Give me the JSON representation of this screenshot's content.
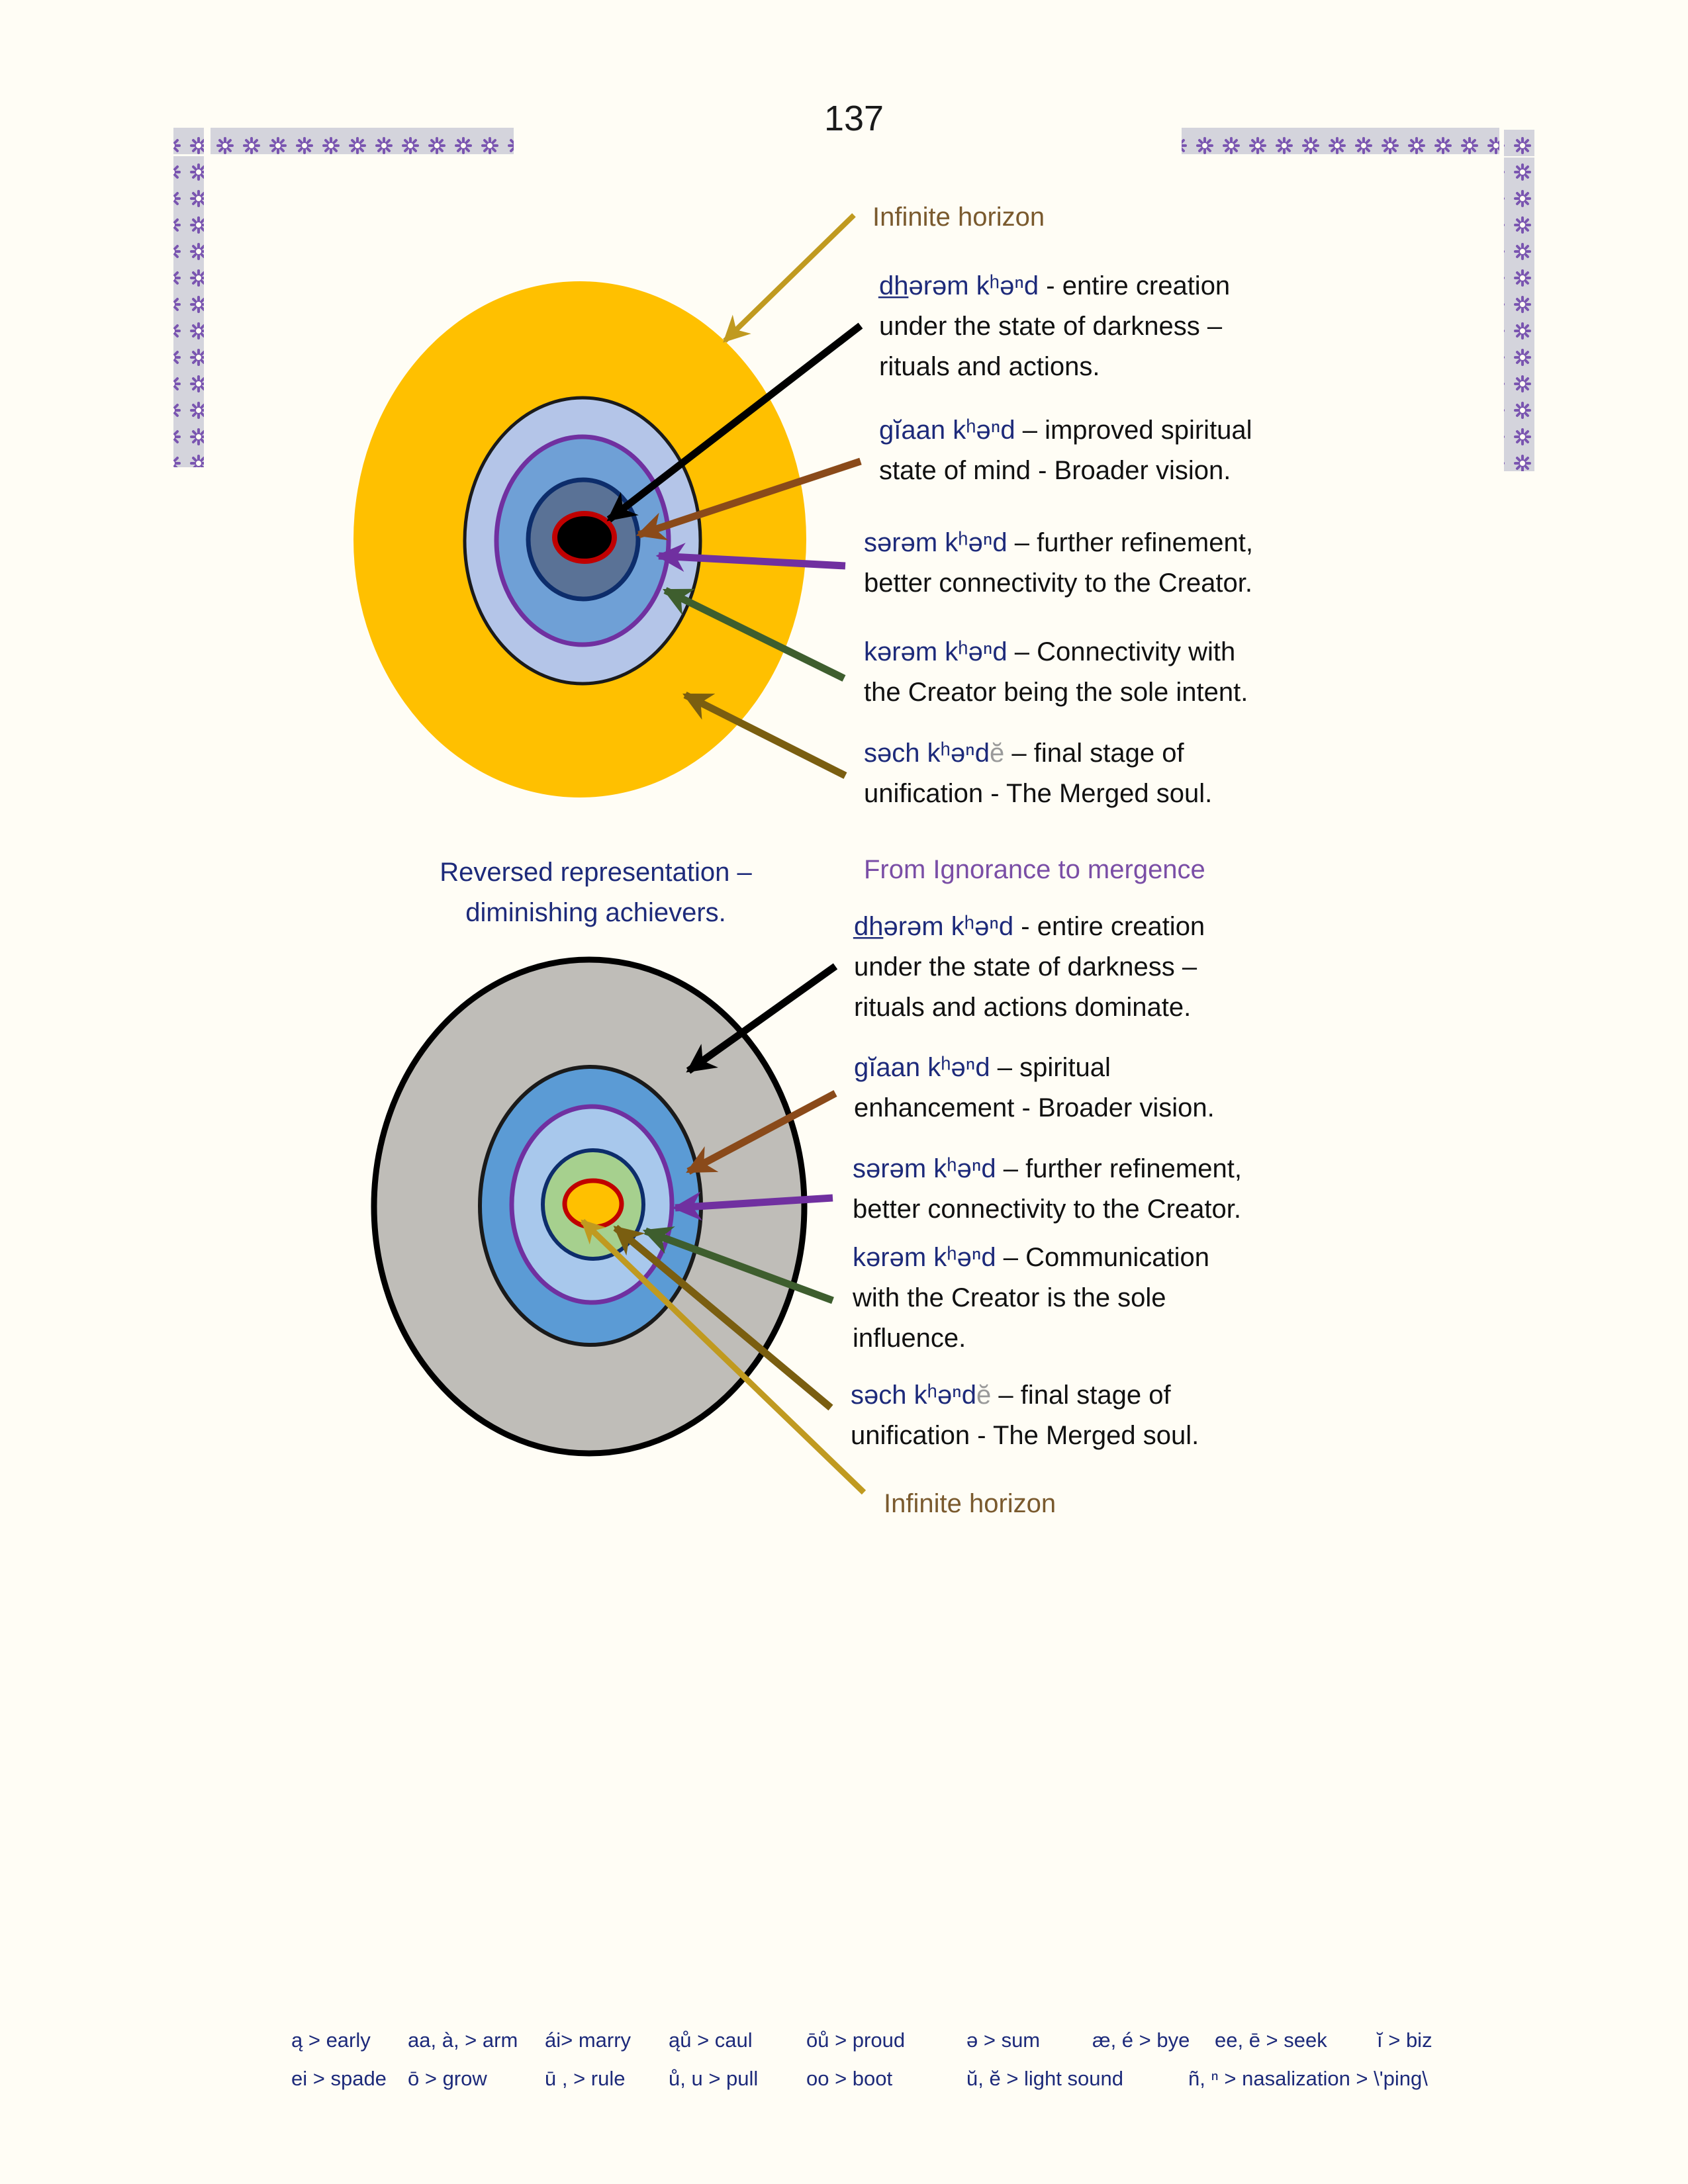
{
  "page_number": "137",
  "colors": {
    "gold": "#ffc000",
    "gray": "#bfbdb8",
    "light_blue": "#b4c5e8",
    "mid_blue": "#6fa0d6",
    "steel_blue": "#5a7296",
    "navy": "#0d2d6b",
    "purple": "#7030a0",
    "green": "#a6d08e",
    "red": "#c00000",
    "brown_arrow": "#8a4a1a",
    "green_arrow": "#3e5e2e",
    "olive_arrow": "#7a5e10",
    "gold_arrow": "#c09a20",
    "term_text": "#1d2a7a"
  },
  "top_diagram": {
    "horizon": "Infinite horizon",
    "items": [
      {
        "term": "d̲h̲ərəm  kʰəⁿd",
        "desc_1": "  - entire creation",
        "desc_2": "under the state of darkness –",
        "desc_3": "rituals and actions."
      },
      {
        "term": "gĭaan  kʰəⁿd",
        "desc_1": "  – improved spiritual",
        "desc_2": "state of mind - Broader vision."
      },
      {
        "term": "sərəm  kʰəⁿd",
        "desc_1": "  – further refinement,",
        "desc_2": "better connectivity to the Creator."
      },
      {
        "term": "kərəm   kʰəⁿd",
        "desc_1": "   – Connectivity with",
        "desc_2": "the Creator being the sole intent."
      },
      {
        "term": "səch  kʰəⁿd",
        "term_suffix": "ĕ",
        "desc_1": " – final stage of",
        "desc_2": "unification  - The Merged soul."
      }
    ]
  },
  "bottom_diagram": {
    "caption_left_1": "Reversed representation –",
    "caption_left_2": "diminishing achievers.",
    "caption_right": "From Ignorance to mergence",
    "horizon": "Infinite horizon",
    "items": [
      {
        "term": "d̲h̲ərəm  kʰəⁿd",
        "desc_1": " - entire creation",
        "desc_2": "under the state of darkness –",
        "desc_3": "rituals and actions dominate."
      },
      {
        "term": "gĭaan  kʰəⁿd",
        "desc_1": "  –  spiritual",
        "desc_2": "enhancement  - Broader vision."
      },
      {
        "term": "sərəm  kʰəⁿd",
        "desc_1": "  – further refinement,",
        "desc_2": "better connectivity to the Creator."
      },
      {
        "term": "kərəm   kʰəⁿd",
        "desc_1": "  – Communication",
        "desc_2": "with the Creator is the sole",
        "desc_3": "influence."
      },
      {
        "term": "səch  kʰəⁿd",
        "term_suffix": "ĕ",
        "desc_1": " – final stage of",
        "desc_2": "unification - The Merged soul."
      }
    ]
  },
  "legend": {
    "row1": [
      "ą > early",
      "aa, à, > arm",
      "ái> marry",
      "ąů > caul",
      "ōů > proud",
      "ə > sum",
      "æ, é > bye",
      "ee, ē  > seek",
      "ĭ > biz"
    ],
    "row2": [
      "ei > spade",
      "ō > grow",
      "ū , > rule",
      "ů, u > pull",
      "oo > boot",
      "ŭ, ĕ > light sound",
      "ñ, ⁿ  > nasalization > \\'ping\\"
    ]
  }
}
